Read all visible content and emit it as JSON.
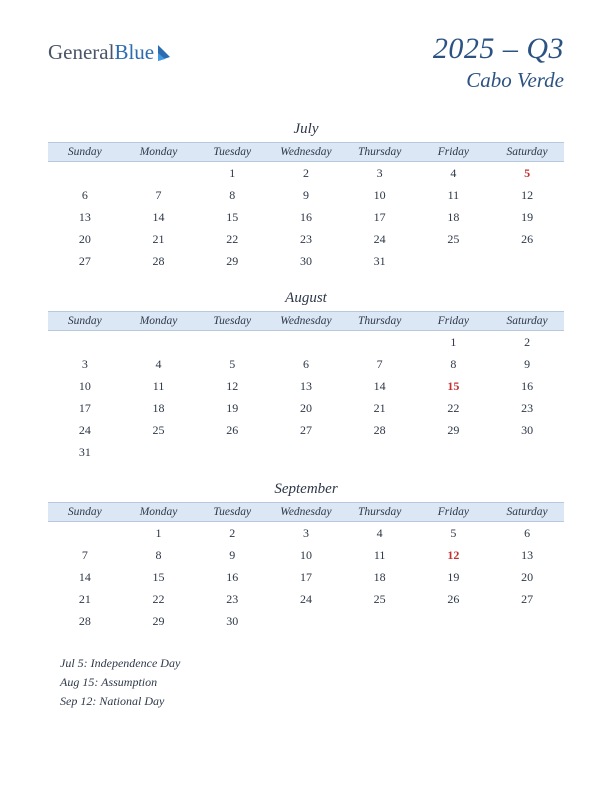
{
  "logo": {
    "text1": "General",
    "text2": "Blue"
  },
  "title": {
    "quarter": "2025 – Q3",
    "country": "Cabo Verde"
  },
  "dayHeaders": [
    "Sunday",
    "Monday",
    "Tuesday",
    "Wednesday",
    "Thursday",
    "Friday",
    "Saturday"
  ],
  "months": [
    {
      "name": "July",
      "startDay": 2,
      "days": 31,
      "holidays": [
        5
      ]
    },
    {
      "name": "August",
      "startDay": 5,
      "days": 31,
      "holidays": [
        15
      ]
    },
    {
      "name": "September",
      "startDay": 1,
      "days": 30,
      "holidays": [
        12
      ]
    }
  ],
  "holidayList": [
    "Jul 5: Independence Day",
    "Aug 15: Assumption",
    "Sep 12: National Day"
  ],
  "colors": {
    "titleColor": "#2c5282",
    "headerBg": "#dbe7f5",
    "textColor": "#2d3748",
    "holidayColor": "#c53030"
  }
}
